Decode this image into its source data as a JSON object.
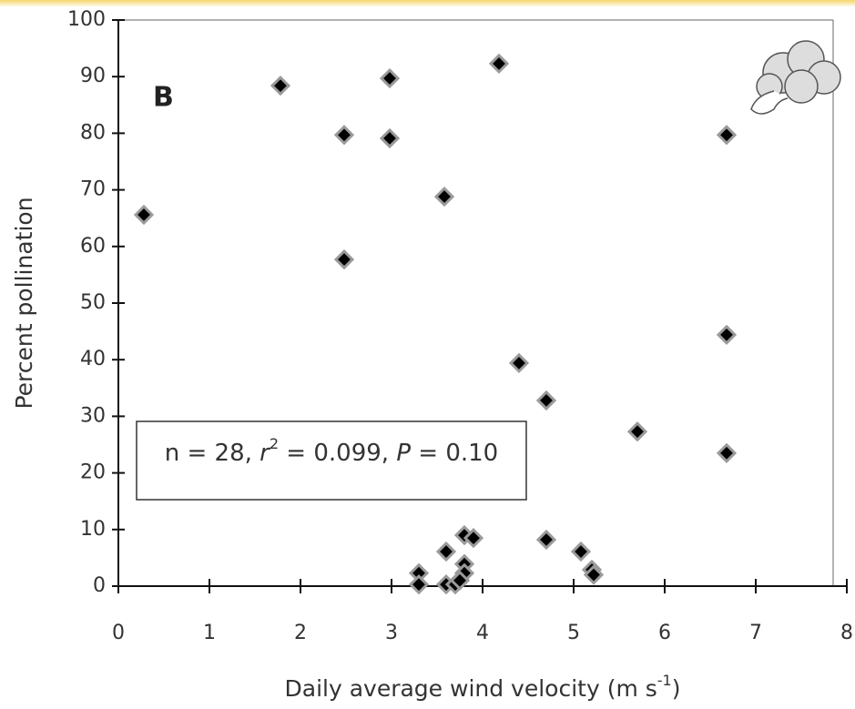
{
  "chart_data": {
    "type": "scatter",
    "panel_label": "B",
    "ylabel": "Percent pollination",
    "xlabel_parts": [
      "Daily average wind velocity (m s",
      "-1",
      ")"
    ],
    "annotation_parts": [
      "n = 28, ",
      "r",
      "2",
      " = 0.099, ",
      "P",
      " = 0.10"
    ],
    "xlim": [
      0,
      8
    ],
    "ylim": [
      0,
      100
    ],
    "xticks": [
      0,
      1,
      2,
      3,
      4,
      5,
      6,
      7,
      8
    ],
    "yticks": [
      0,
      10,
      20,
      30,
      40,
      50,
      60,
      70,
      80,
      90,
      100
    ],
    "color": "#000000",
    "edgecolor": "#9a9a9a",
    "x": [
      0.28,
      1.78,
      2.48,
      2.48,
      2.98,
      2.98,
      3.58,
      4.18,
      6.68,
      6.68,
      6.68,
      4.4,
      4.7,
      5.7,
      4.7,
      5.08,
      5.2,
      3.8,
      3.9,
      3.6,
      3.3,
      3.3,
      3.6,
      3.7,
      3.8,
      3.8,
      5.22,
      3.75
    ],
    "y": [
      65.6,
      88.4,
      79.7,
      57.7,
      89.7,
      79.1,
      68.8,
      92.3,
      79.7,
      44.4,
      23.5,
      39.4,
      32.8,
      27.3,
      8.2,
      6.1,
      2.9,
      9.0,
      8.5,
      6.1,
      2.3,
      0.3,
      0.3,
      0.3,
      3.9,
      2.3,
      2.0,
      1.0
    ]
  }
}
